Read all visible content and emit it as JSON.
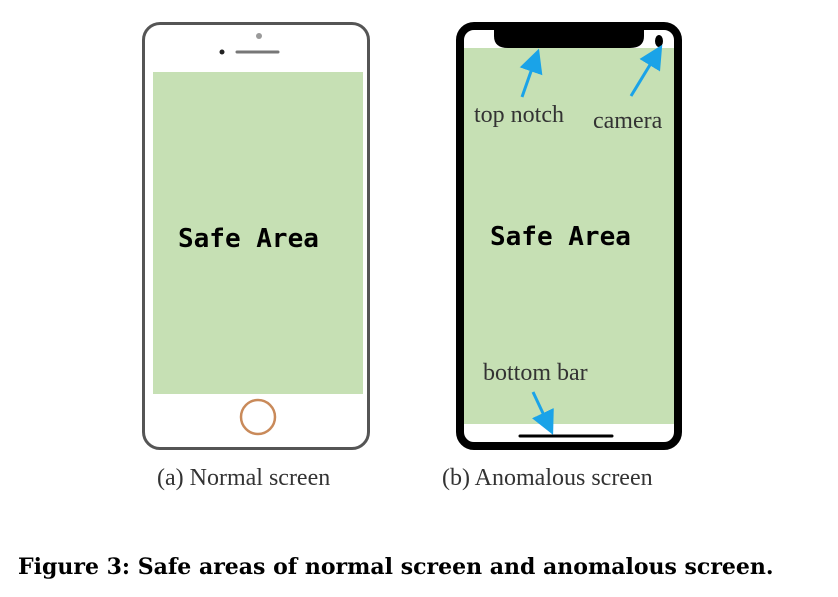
{
  "panels": [
    {
      "safe_label": "Safe Area",
      "caption": "(a) Normal screen"
    },
    {
      "safe_label": "Safe Area",
      "caption": "(b) Anomalous screen"
    }
  ],
  "annotations": {
    "top_notch": "top notch",
    "camera": "camera",
    "bottom_bar": "bottom bar"
  },
  "figure_caption": "Figure 3: Safe areas of normal screen and anomalous screen.",
  "colors": {
    "safe_area": "#c6e0b4",
    "arrow": "#1aa3e8",
    "normal_frame": "#555555",
    "anomalous_frame": "#000000",
    "home_button_ring": "#c98a5a"
  }
}
